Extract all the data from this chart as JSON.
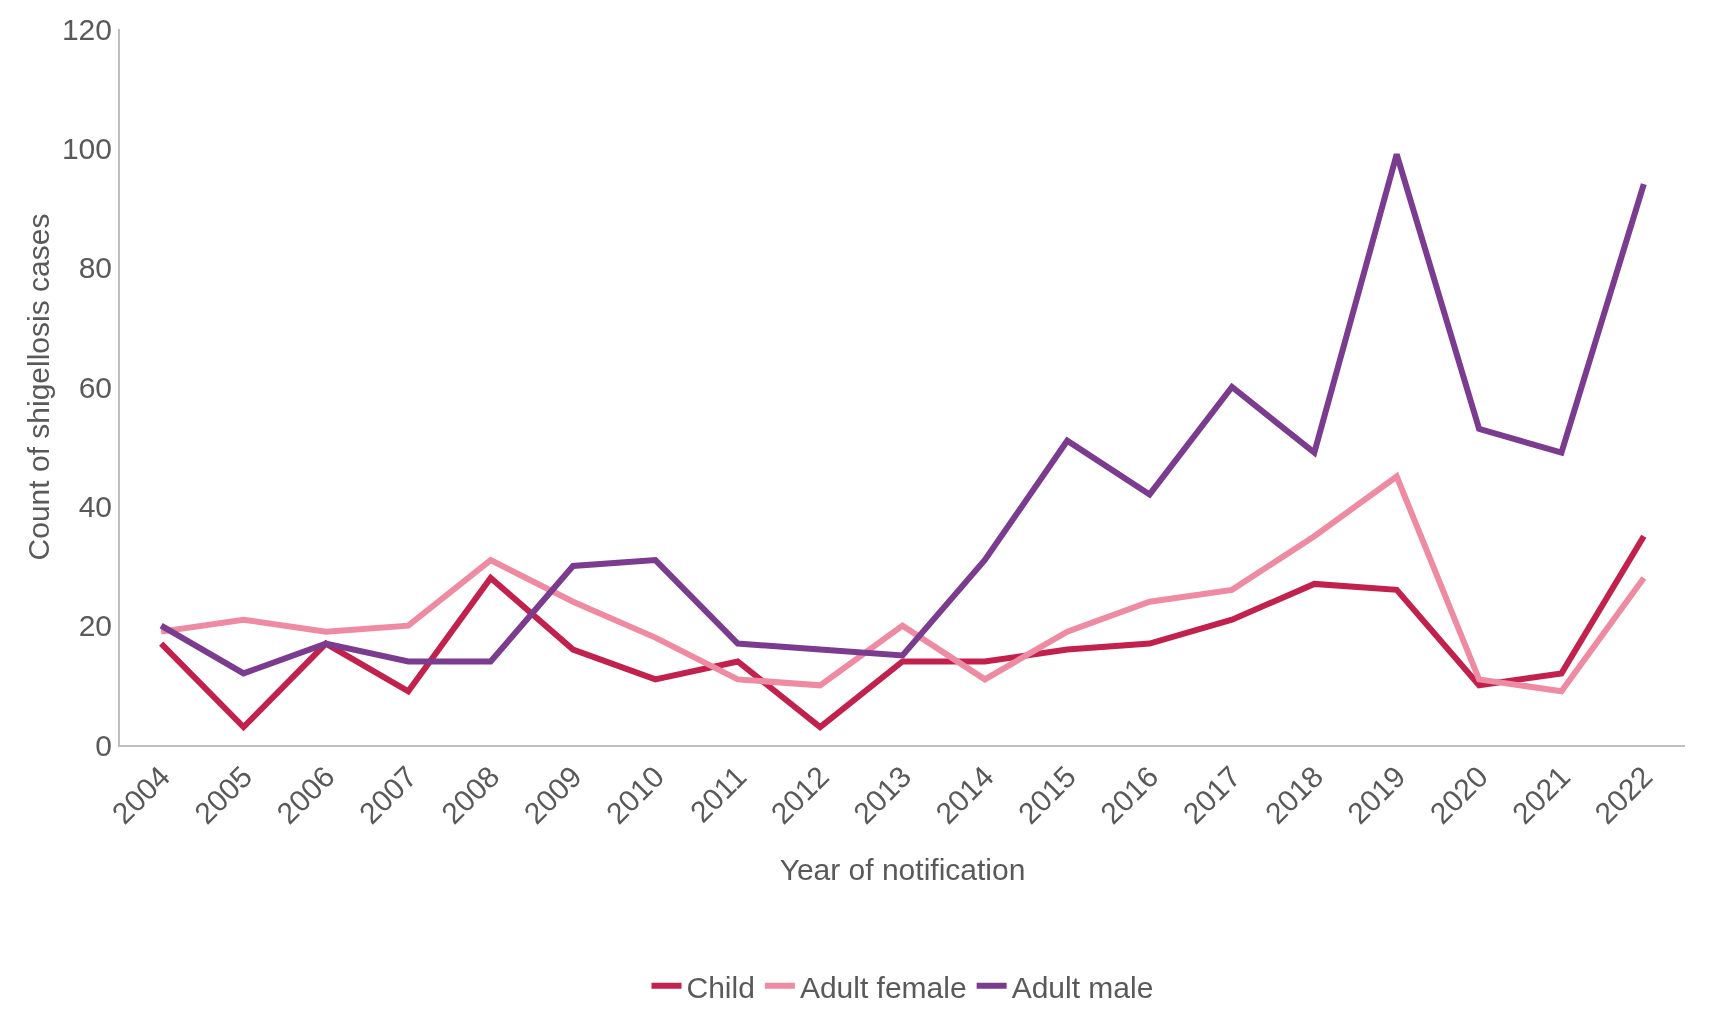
{
  "chart_data": {
    "type": "line",
    "xlabel": "Year of notification",
    "ylabel": "Count of shigellosis cases",
    "categories": [
      "2004",
      "2005",
      "2006",
      "2007",
      "2008",
      "2009",
      "2010",
      "2011",
      "2012",
      "2013",
      "2014",
      "2015",
      "2016",
      "2017",
      "2018",
      "2019",
      "2020",
      "2021",
      "2022"
    ],
    "series": [
      {
        "name": "Child",
        "color": "#c2214e",
        "values": [
          17,
          3,
          17,
          9,
          28,
          16,
          11,
          14,
          3,
          14,
          14,
          16,
          17,
          21,
          27,
          26,
          10,
          12,
          35
        ]
      },
      {
        "name": "Adult female",
        "color": "#ef8aa3",
        "values": [
          19,
          21,
          19,
          20,
          31,
          24,
          18,
          11,
          10,
          20,
          11,
          19,
          24,
          26,
          35,
          45,
          11,
          9,
          28
        ]
      },
      {
        "name": "Adult male",
        "color": "#7b3b8e",
        "values": [
          20,
          12,
          17,
          14,
          14,
          30,
          31,
          17,
          16,
          15,
          31,
          51,
          42,
          60,
          49,
          99,
          53,
          49,
          94
        ]
      }
    ],
    "ylim": [
      0,
      120
    ],
    "yticks": [
      0,
      20,
      40,
      60,
      80,
      100,
      120
    ],
    "grid": false,
    "legend": "bottom",
    "marker": "none",
    "line_style": "solid"
  }
}
